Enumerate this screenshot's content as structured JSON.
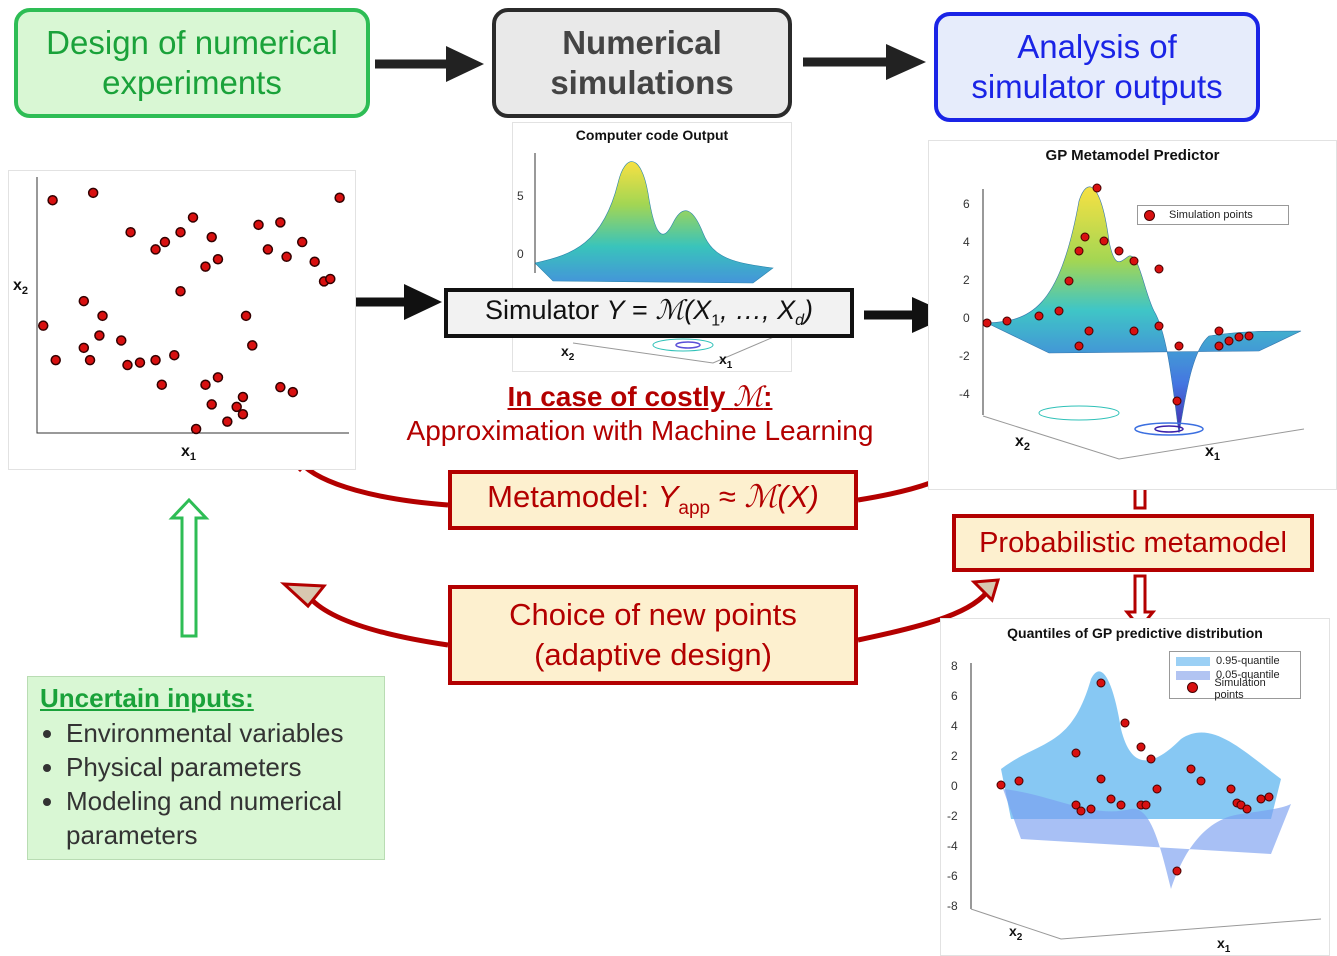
{
  "steps": {
    "design": {
      "line1": "Design of numerical",
      "line2": "experiments"
    },
    "simulation": {
      "line1": "Numerical",
      "line2": "simulations"
    },
    "analysis": {
      "line1": "Analysis of",
      "line2": "simulator outputs"
    }
  },
  "simulator": {
    "prefix": "Simulator ",
    "y": "Y",
    "eq": " = ",
    "model": "ℳ",
    "open": "(X",
    "sub1": "1",
    "mid": ", …, X",
    "subd": "d",
    "close": ")"
  },
  "costly": {
    "title_prefix": "In case of costly ",
    "title_model": "ℳ",
    "title_suffix": ":",
    "subtitle": "Approximation with Machine Learning"
  },
  "metamodel": {
    "prefix": "Metamodel: ",
    "y": "Y",
    "sub": "app",
    "approx": " ≈ ",
    "model": "ℳ",
    "arg": "(X)"
  },
  "probabilistic": {
    "label": "Probabilistic metamodel"
  },
  "choice": {
    "line1": "Choice of new points",
    "line2": "(adaptive design)"
  },
  "uncertain_inputs": {
    "title": "Uncertain inputs:",
    "items": [
      "Environmental variables",
      "Physical parameters",
      "Modeling and numerical parameters"
    ]
  },
  "scatter_plot": {
    "xlabel": "x",
    "xsub": "1",
    "ylabel": "x",
    "ysub": "2",
    "points": [
      [
        5,
        93
      ],
      [
        18,
        96
      ],
      [
        30,
        80
      ],
      [
        41,
        76
      ],
      [
        38,
        73
      ],
      [
        50,
        86
      ],
      [
        46,
        80
      ],
      [
        56,
        78
      ],
      [
        58,
        69
      ],
      [
        54,
        66
      ],
      [
        46,
        56
      ],
      [
        71,
        83
      ],
      [
        78,
        84
      ],
      [
        80,
        70
      ],
      [
        74,
        73
      ],
      [
        85,
        76
      ],
      [
        89,
        68
      ],
      [
        92,
        60
      ],
      [
        97,
        94
      ],
      [
        94,
        61
      ],
      [
        15,
        52
      ],
      [
        2,
        42
      ],
      [
        21,
        46
      ],
      [
        20,
        38
      ],
      [
        6,
        28
      ],
      [
        15,
        33
      ],
      [
        17,
        28
      ],
      [
        27,
        36
      ],
      [
        29,
        26
      ],
      [
        33,
        27
      ],
      [
        38,
        28
      ],
      [
        44,
        30
      ],
      [
        40,
        18
      ],
      [
        54,
        18
      ],
      [
        58,
        21
      ],
      [
        66,
        13
      ],
      [
        64,
        9
      ],
      [
        66,
        6
      ],
      [
        78,
        17
      ],
      [
        82,
        15
      ],
      [
        61,
        3
      ],
      [
        51,
        0
      ],
      [
        56,
        10
      ],
      [
        67,
        46
      ],
      [
        69,
        34
      ]
    ]
  },
  "computer_code_panel": {
    "title": "Computer code Output",
    "yticks": [
      "5",
      "0"
    ],
    "xlabel": "x",
    "xsub": "1",
    "ylabel": "x",
    "ysub": "2"
  },
  "gp_panel": {
    "title": "GP Metamodel Predictor",
    "yticks": [
      "6",
      "4",
      "2",
      "0",
      "-2",
      "-4"
    ],
    "legend": "Simulation points",
    "xlabel": "x",
    "xsub": "1",
    "ylabel": "x",
    "ysub": "2"
  },
  "quantile_panel": {
    "title": "Quantiles of GP predictive distribution",
    "yticks": [
      "8",
      "6",
      "4",
      "2",
      "0",
      "-2",
      "-4",
      "-6",
      "-8"
    ],
    "legend": [
      "0.95-quantile",
      "0.05-quantile",
      "Simulation points"
    ],
    "xlabel": "x",
    "xsub": "1",
    "ylabel": "x",
    "ysub": "2"
  },
  "colors": {
    "green": "#1aa23a",
    "red": "#b30000",
    "blue": "#1a24e6",
    "cream": "#fdf0cf"
  }
}
